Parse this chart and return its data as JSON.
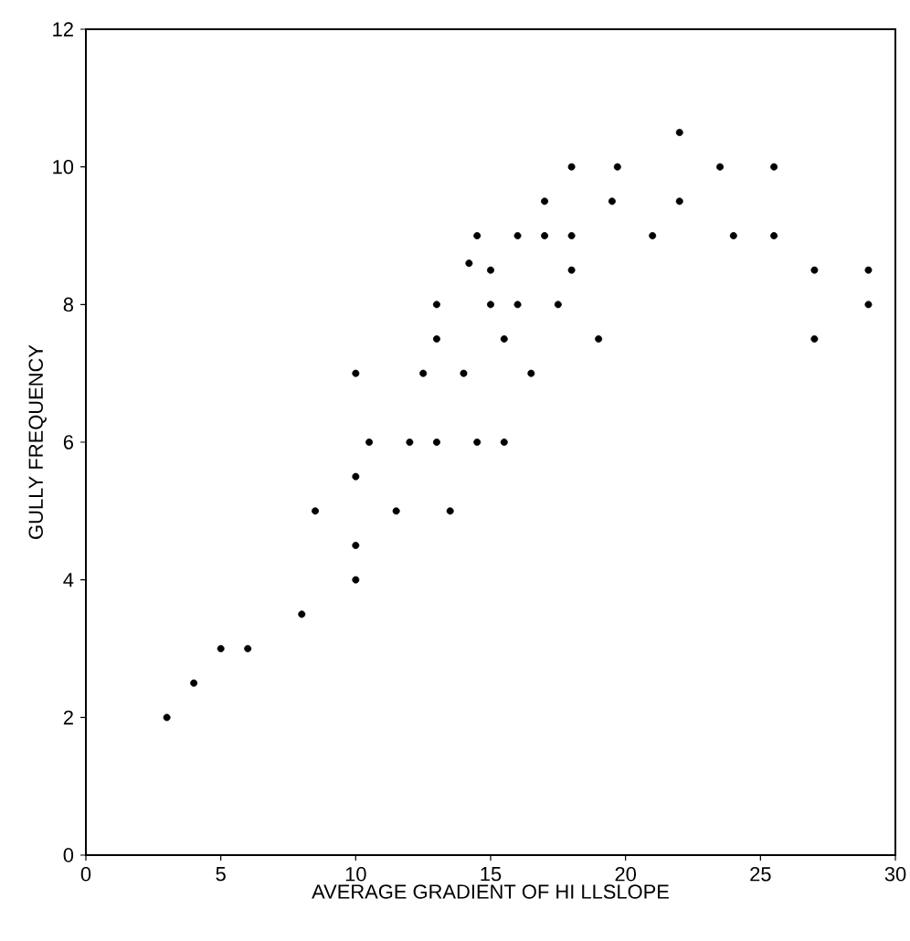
{
  "chart_data": {
    "type": "scatter",
    "xlabel": "AVERAGE GRADIENT OF HI LLSLOPE",
    "ylabel": "GULLY FREQUENCY",
    "xlim": [
      0,
      30
    ],
    "ylim": [
      0,
      12
    ],
    "xticks": [
      0,
      5,
      10,
      15,
      20,
      25,
      30
    ],
    "yticks": [
      0,
      2,
      4,
      6,
      8,
      10,
      12
    ],
    "grid": false,
    "marker": "circle",
    "series": [
      {
        "color": "#000000",
        "x": [
          3,
          4,
          5,
          6,
          8,
          8.5,
          10,
          10,
          10,
          10,
          10.5,
          11.5,
          12,
          12.5,
          13,
          13,
          13,
          13.5,
          14,
          14.2,
          14.5,
          14.5,
          15,
          15,
          15.5,
          15.5,
          16,
          16,
          16.5,
          17,
          17,
          17.5,
          18,
          18,
          18,
          19,
          19.5,
          19.7,
          21,
          22,
          22,
          23.5,
          24,
          25.5,
          25.5,
          27,
          27,
          29,
          29
        ],
        "values": [
          2,
          2.5,
          3,
          3,
          3.5,
          5,
          4,
          4.5,
          5.5,
          7,
          6,
          5,
          6,
          7,
          6,
          7.5,
          8,
          5,
          7,
          8.6,
          6,
          9,
          8.5,
          8,
          7.5,
          6,
          8,
          9,
          7,
          9.5,
          9,
          8,
          10,
          9,
          8.5,
          7.5,
          9.5,
          10,
          9,
          10.5,
          9.5,
          10,
          9,
          10,
          9,
          8.5,
          7.5,
          8.5,
          8
        ]
      }
    ]
  }
}
